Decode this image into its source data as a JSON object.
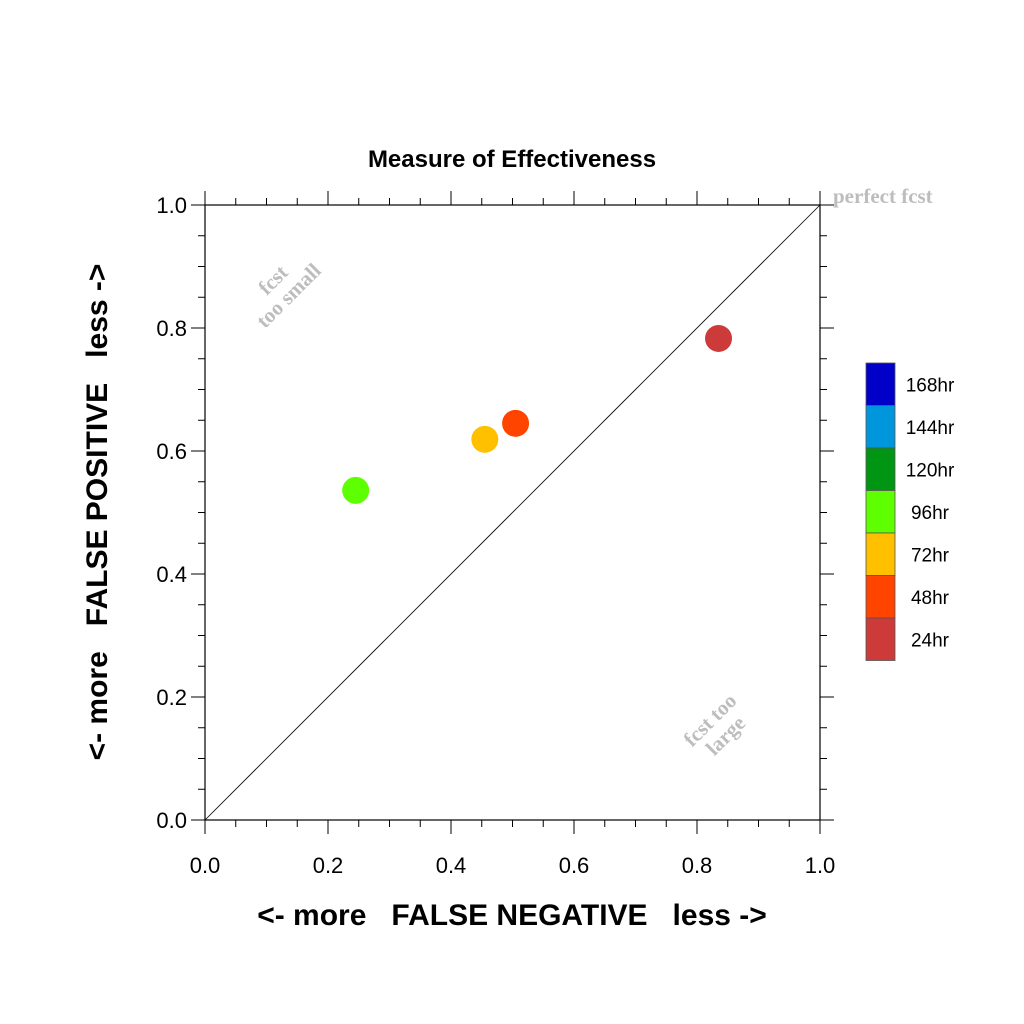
{
  "chart_data": {
    "type": "scatter",
    "title": "Measure of Effectiveness",
    "xlabel": "<- more   FALSE NEGATIVE   less ->",
    "ylabel": "<- more   FALSE POSITIVE   less ->",
    "xlim": [
      0.0,
      1.0
    ],
    "ylim": [
      0.0,
      1.0
    ],
    "xticks": [
      "0.0",
      "0.2",
      "0.4",
      "0.6",
      "0.8",
      "1.0"
    ],
    "yticks": [
      "0.0",
      "0.2",
      "0.4",
      "0.6",
      "0.8",
      "1.0"
    ],
    "grid": false,
    "reference_line": {
      "from": [
        0,
        0
      ],
      "to": [
        1,
        1
      ]
    },
    "annotations": {
      "perfect": "perfect fcst",
      "too_small_line1": "fcst",
      "too_small_line2": "too small",
      "too_large_line1": "fcst too",
      "too_large_line2": "large"
    },
    "points": [
      {
        "label": "24hr",
        "x": 0.835,
        "y": 0.783,
        "color": "#cc3a3a"
      },
      {
        "label": "48hr",
        "x": 0.505,
        "y": 0.645,
        "color": "#ff4400"
      },
      {
        "label": "72hr",
        "x": 0.455,
        "y": 0.619,
        "color": "#ffc000"
      },
      {
        "label": "96hr",
        "x": 0.245,
        "y": 0.536,
        "color": "#5eff00"
      }
    ],
    "legend": {
      "placement": "right",
      "entries": [
        {
          "label": "168hr",
          "color": "#0000c8"
        },
        {
          "label": "144hr",
          "color": "#0096dc"
        },
        {
          "label": "120hr",
          "color": "#009614"
        },
        {
          "label": "96hr",
          "color": "#5eff00"
        },
        {
          "label": "72hr",
          "color": "#ffc000"
        },
        {
          "label": "48hr",
          "color": "#ff4400"
        },
        {
          "label": "24hr",
          "color": "#cc3a3a"
        }
      ]
    }
  }
}
